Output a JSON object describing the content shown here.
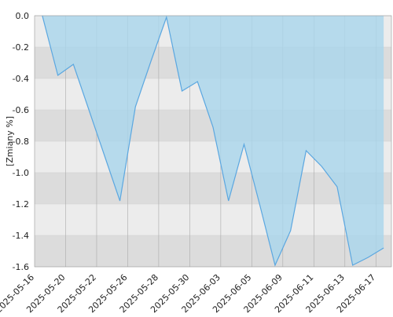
{
  "chart_data": {
    "type": "area",
    "y_label": "[Zmiany %]",
    "categories": [
      "2025-05-16",
      null,
      "2025-05-20",
      null,
      "2025-05-22",
      null,
      "2025-05-26",
      null,
      "2025-05-28",
      null,
      "2025-05-30",
      null,
      "2025-06-03",
      null,
      "2025-06-05",
      null,
      "2025-06-09",
      null,
      "2025-06-11",
      null,
      "2025-06-13",
      null,
      "2025-06-17"
    ],
    "values": [
      0,
      -0.38,
      -0.31,
      -0.6,
      -0.89,
      -1.18,
      -0.58,
      -0.29,
      -0.01,
      -0.48,
      -0.42,
      -0.71,
      -1.18,
      -0.82,
      -1.2,
      -1.59,
      -1.37,
      -0.86,
      -0.96,
      -1.09,
      -1.59,
      -1.54,
      -1.48
    ],
    "color": "#5ba7e0",
    "fill": "#a9d6ec",
    "ylim": [
      -1.6,
      0
    ],
    "yticks": [
      {
        "value": 0,
        "label": "0.0"
      },
      -0.2,
      -0.4,
      -0.6,
      -0.8,
      {
        "value": -1,
        "label": "-1.0"
      },
      -1.2,
      -1.4,
      -1.6
    ],
    "grid": true
  }
}
